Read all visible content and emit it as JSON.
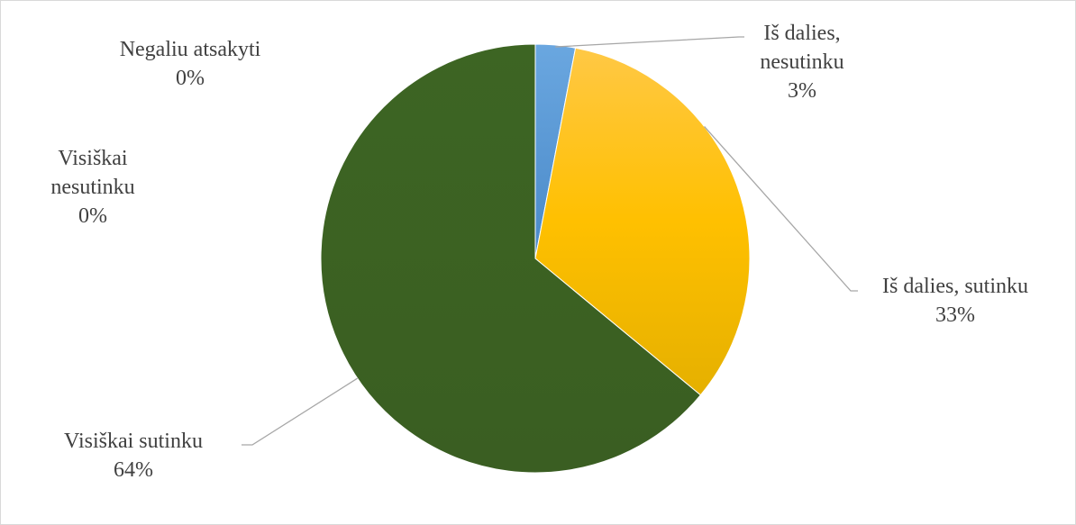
{
  "chart_data": {
    "type": "pie",
    "title": "",
    "slices": [
      {
        "label": [
          "Negaliu atsakyti"
        ],
        "value": 0,
        "percent_label": "0%",
        "color": "#5b9bd5"
      },
      {
        "label": [
          "Iš dalies,",
          "nesutinku"
        ],
        "value": 3,
        "percent_label": "3%",
        "color": "#5b9bd5"
      },
      {
        "label": [
          "Iš dalies, sutinku"
        ],
        "value": 33,
        "percent_label": "33%",
        "color": "#ffc000"
      },
      {
        "label": [
          "Visiškai sutinku"
        ],
        "value": 64,
        "percent_label": "64%",
        "color": "#3f6323"
      },
      {
        "label": [
          "Visiškai",
          "nesutinku"
        ],
        "value": 0,
        "percent_label": "0%",
        "color": "#ed7d31"
      }
    ],
    "legend": "none",
    "colors": {
      "leader_line": "#a6a6a6",
      "label_text": "#404040",
      "border": "#d9d9d9"
    }
  }
}
